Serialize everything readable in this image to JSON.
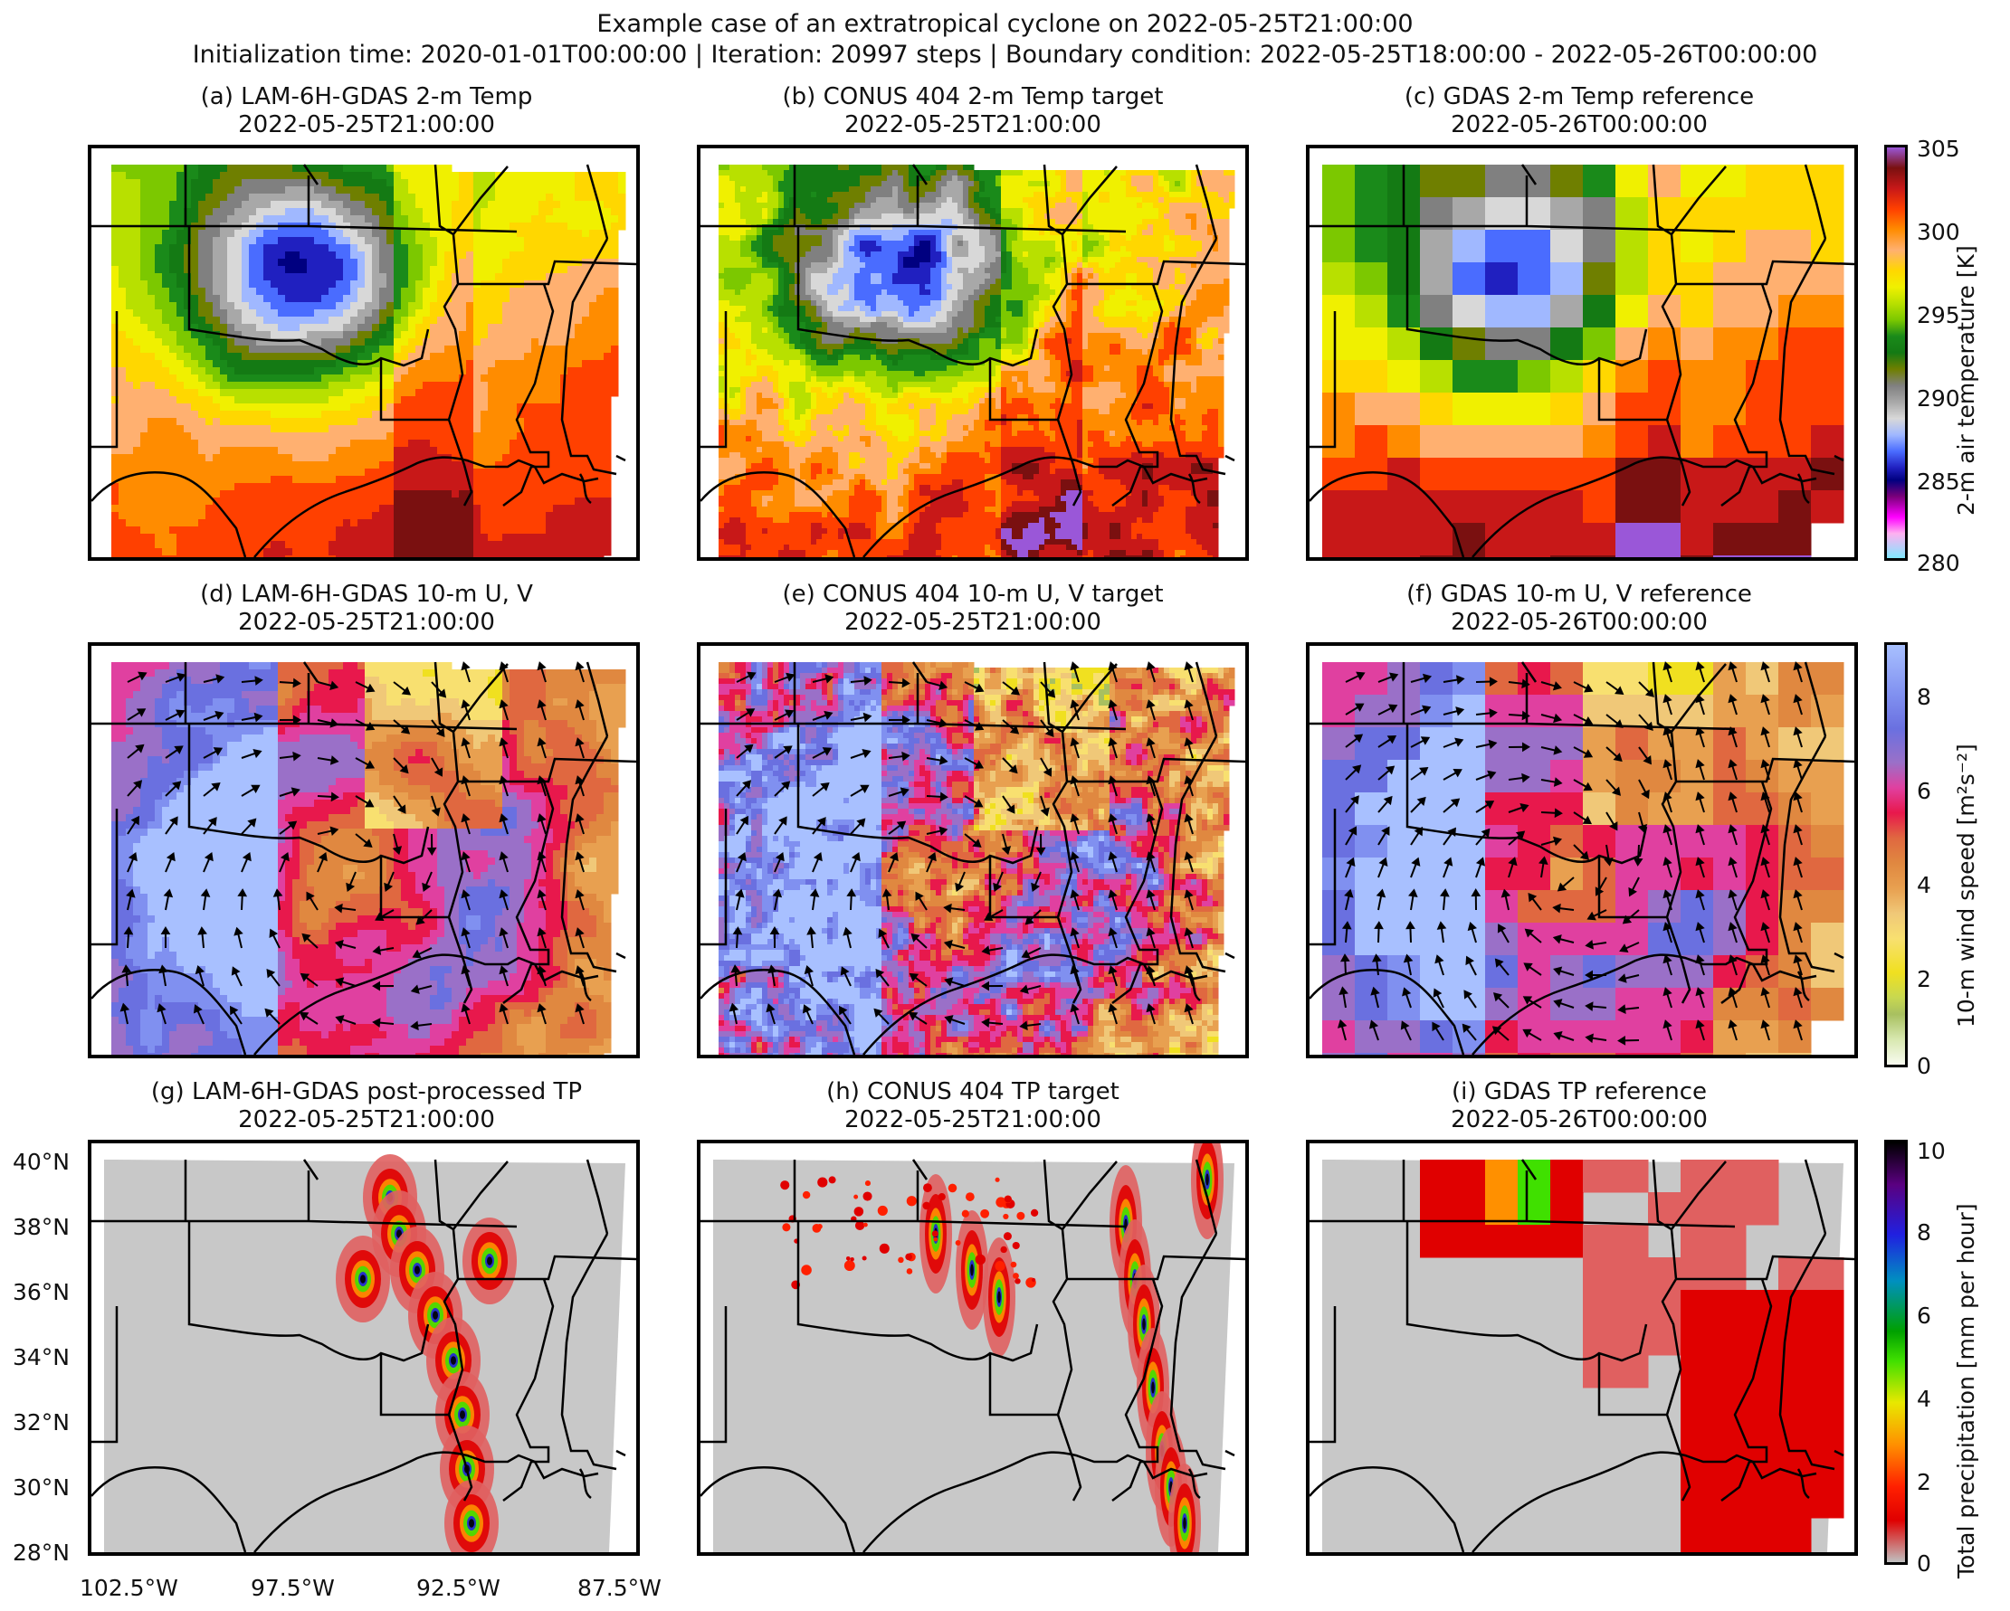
{
  "figure": {
    "title_line1": "Example case of an extratropical cyclone on 2022-05-25T21:00:00",
    "title_line2": "Initialization time: 2020-01-01T00:00:00 | Iteration: 20997 steps | Boundary condition: 2022-05-25T18:00:00 - 2022-05-26T00:00:00"
  },
  "panels": [
    {
      "title": "(a) LAM-6H-GDAS 2-m Temp",
      "time": "2022-05-25T21:00:00"
    },
    {
      "title": "(b) CONUS 404 2-m Temp target",
      "time": "2022-05-25T21:00:00"
    },
    {
      "title": "(c) GDAS 2-m Temp reference",
      "time": "2022-05-26T00:00:00"
    },
    {
      "title": "(d) LAM-6H-GDAS 10-m U, V",
      "time": "2022-05-25T21:00:00"
    },
    {
      "title": "(e) CONUS 404 10-m U, V target",
      "time": "2022-05-25T21:00:00"
    },
    {
      "title": "(f) GDAS 10-m U, V reference",
      "time": "2022-05-26T00:00:00"
    },
    {
      "title": "(g) LAM-6H-GDAS post-processed TP",
      "time": "2022-05-25T21:00:00"
    },
    {
      "title": "(h) CONUS 404 TP target",
      "time": "2022-05-25T21:00:00"
    },
    {
      "title": "(i) GDAS TP reference",
      "time": "2022-05-26T00:00:00"
    }
  ],
  "colorbars": [
    {
      "label": "2-m air temperature [K]",
      "ticks": [
        "305",
        "300",
        "295",
        "290",
        "285",
        "280"
      ]
    },
    {
      "label": "10-m wind speed [m²s⁻²]",
      "ticks": [
        "8",
        "6",
        "4",
        "2",
        "0"
      ]
    },
    {
      "label": "Total precipitation [mm per hour]",
      "ticks": [
        "10",
        "8",
        "6",
        "4",
        "2",
        "0"
      ]
    }
  ],
  "axes": {
    "lat_labels": [
      "40°N",
      "38°N",
      "36°N",
      "34°N",
      "32°N",
      "30°N",
      "28°N"
    ],
    "lon_labels": [
      "102.5°W",
      "97.5°W",
      "92.5°W",
      "87.5°W"
    ]
  },
  "chart_data": [
    {
      "type": "heatmap",
      "title": "(a) LAM-6H-GDAS 2-m Temp",
      "subtitle": "2022-05-25T21:00:00",
      "variable": "2-m air temperature",
      "units": "K",
      "value_range": [
        280,
        305
      ]
    },
    {
      "type": "heatmap",
      "title": "(b) CONUS 404 2-m Temp target",
      "subtitle": "2022-05-25T21:00:00",
      "variable": "2-m air temperature",
      "units": "K",
      "value_range": [
        280,
        305
      ]
    },
    {
      "type": "heatmap",
      "title": "(c) GDAS 2-m Temp reference",
      "subtitle": "2022-05-26T00:00:00",
      "variable": "2-m air temperature",
      "units": "K",
      "value_range": [
        280,
        305
      ]
    },
    {
      "type": "heatmap",
      "title": "(d) LAM-6H-GDAS 10-m U, V",
      "subtitle": "2022-05-25T21:00:00",
      "variable": "10-m wind speed",
      "units": "m2s-2",
      "value_range": [
        0,
        9
      ],
      "overlay": "wind vectors"
    },
    {
      "type": "heatmap",
      "title": "(e) CONUS 404 10-m U, V target",
      "subtitle": "2022-05-25T21:00:00",
      "variable": "10-m wind speed",
      "units": "m2s-2",
      "value_range": [
        0,
        9
      ],
      "overlay": "wind vectors"
    },
    {
      "type": "heatmap",
      "title": "(f) GDAS 10-m U, V reference",
      "subtitle": "2022-05-26T00:00:00",
      "variable": "10-m wind speed",
      "units": "m2s-2",
      "value_range": [
        0,
        9
      ],
      "overlay": "wind vectors"
    },
    {
      "type": "heatmap",
      "title": "(g) LAM-6H-GDAS post-processed TP",
      "subtitle": "2022-05-25T21:00:00",
      "variable": "Total precipitation",
      "units": "mm per hour",
      "value_range": [
        0,
        10
      ]
    },
    {
      "type": "heatmap",
      "title": "(h) CONUS 404 TP target",
      "subtitle": "2022-05-25T21:00:00",
      "variable": "Total precipitation",
      "units": "mm per hour",
      "value_range": [
        0,
        10
      ]
    },
    {
      "type": "heatmap",
      "title": "(i) GDAS TP reference",
      "subtitle": "2022-05-26T00:00:00",
      "variable": "Total precipitation",
      "units": "mm per hour",
      "value_range": [
        0,
        10
      ]
    }
  ]
}
